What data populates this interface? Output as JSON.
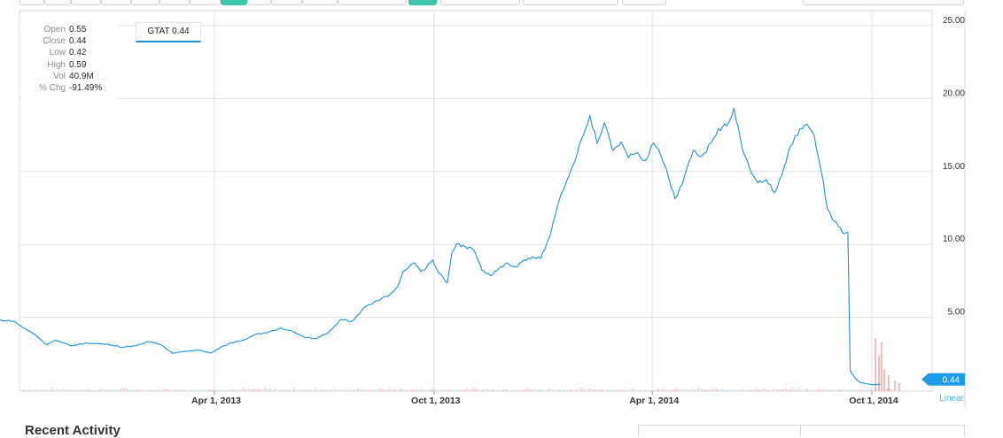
{
  "toolbar": {
    "buttons": 14,
    "active": [
      4,
      8
    ]
  },
  "ohlc": [
    {
      "label": "Open",
      "value": "0.55"
    },
    {
      "label": "Close",
      "value": "0.44"
    },
    {
      "label": "Low",
      "value": "0.42"
    },
    {
      "label": "High",
      "value": "0.59"
    },
    {
      "label": "Vol",
      "value": "40.9M"
    },
    {
      "label": "% Chg",
      "value": "-91.49%"
    }
  ],
  "legend": {
    "label": "GTAT 0.44"
  },
  "scale_mode": "Linear",
  "bottom": {
    "title": "Recent Activity"
  },
  "colors": {
    "line": "#1e90d6",
    "grid": "#e1e1e1",
    "volume": "#f4a6a6",
    "last_price": "#1e9be8",
    "accent": "#3fc5a9"
  },
  "chart_data": {
    "type": "line",
    "ticker": "GTAT",
    "last_price": "0.44",
    "x_ticks": [
      "Apr 1, 2013",
      "Oct 1, 2013",
      "Apr 1, 2014",
      "Oct 1, 2014"
    ],
    "y_ticks": [
      "5.00",
      "10.00",
      "15.00",
      "20.00",
      "25.00"
    ],
    "ylim": [
      0,
      25
    ],
    "xlim": [
      "2012-10-03",
      "2014-10-10"
    ],
    "grid": true,
    "series": [
      {
        "values": [
          [
            "2012-10-03",
            4.9
          ],
          [
            "2012-10-15",
            4.8
          ],
          [
            "2012-10-25",
            4.3
          ],
          [
            "2012-11-05",
            3.7
          ],
          [
            "2012-11-12",
            3.2
          ],
          [
            "2012-11-20",
            3.5
          ],
          [
            "2012-12-03",
            3.1
          ],
          [
            "2012-12-15",
            3.3
          ],
          [
            "2013-01-03",
            3.2
          ],
          [
            "2013-01-15",
            3.0
          ],
          [
            "2013-01-25",
            3.1
          ],
          [
            "2013-02-05",
            3.4
          ],
          [
            "2013-02-15",
            3.2
          ],
          [
            "2013-02-25",
            2.6
          ],
          [
            "2013-03-05",
            2.7
          ],
          [
            "2013-03-20",
            2.8
          ],
          [
            "2013-03-29",
            2.6
          ],
          [
            "2013-04-08",
            3.1
          ],
          [
            "2013-04-15",
            3.3
          ],
          [
            "2013-04-25",
            3.5
          ],
          [
            "2013-05-06",
            3.9
          ],
          [
            "2013-05-15",
            4.0
          ],
          [
            "2013-05-25",
            4.3
          ],
          [
            "2013-06-05",
            4.1
          ],
          [
            "2013-06-15",
            3.7
          ],
          [
            "2013-06-25",
            3.6
          ],
          [
            "2013-07-05",
            4.0
          ],
          [
            "2013-07-15",
            4.9
          ],
          [
            "2013-07-25",
            4.8
          ],
          [
            "2013-08-05",
            5.8
          ],
          [
            "2013-08-15",
            6.2
          ],
          [
            "2013-08-25",
            6.6
          ],
          [
            "2013-09-01",
            7.2
          ],
          [
            "2013-09-05",
            8.2
          ],
          [
            "2013-09-12",
            8.7
          ],
          [
            "2013-09-15",
            8.8
          ],
          [
            "2013-09-20",
            8.2
          ],
          [
            "2013-09-25",
            8.5
          ],
          [
            "2013-09-30",
            9.0
          ],
          [
            "2013-10-05",
            8.1
          ],
          [
            "2013-10-12",
            7.4
          ],
          [
            "2013-10-16",
            9.5
          ],
          [
            "2013-10-20",
            10.1
          ],
          [
            "2013-10-27",
            9.9
          ],
          [
            "2013-11-03",
            9.7
          ],
          [
            "2013-11-10",
            8.3
          ],
          [
            "2013-11-17",
            7.9
          ],
          [
            "2013-11-24",
            8.4
          ],
          [
            "2013-12-01",
            8.8
          ],
          [
            "2013-12-08",
            8.5
          ],
          [
            "2013-12-15",
            9.0
          ],
          [
            "2013-12-22",
            9.2
          ],
          [
            "2013-12-29",
            9.1
          ],
          [
            "2014-01-05",
            10.5
          ],
          [
            "2014-01-10",
            12.0
          ],
          [
            "2014-01-15",
            13.5
          ],
          [
            "2014-01-20",
            14.5
          ],
          [
            "2014-01-25",
            15.5
          ],
          [
            "2014-02-01",
            17.3
          ],
          [
            "2014-02-08",
            18.9
          ],
          [
            "2014-02-14",
            17.0
          ],
          [
            "2014-02-20",
            18.4
          ],
          [
            "2014-02-27",
            16.5
          ],
          [
            "2014-03-06",
            17.1
          ],
          [
            "2014-03-12",
            16.0
          ],
          [
            "2014-03-18",
            16.3
          ],
          [
            "2014-03-26",
            15.8
          ],
          [
            "2014-04-02",
            17.0
          ],
          [
            "2014-04-08",
            16.2
          ],
          [
            "2014-04-15",
            14.5
          ],
          [
            "2014-04-20",
            13.2
          ],
          [
            "2014-04-26",
            14.2
          ],
          [
            "2014-05-05",
            16.5
          ],
          [
            "2014-05-12",
            16.1
          ],
          [
            "2014-05-20",
            17.0
          ],
          [
            "2014-05-26",
            18.0
          ],
          [
            "2014-06-02",
            18.2
          ],
          [
            "2014-06-08",
            19.4
          ],
          [
            "2014-06-15",
            16.6
          ],
          [
            "2014-06-21",
            15.3
          ],
          [
            "2014-06-28",
            14.3
          ],
          [
            "2014-07-05",
            14.5
          ],
          [
            "2014-07-12",
            13.6
          ],
          [
            "2014-07-18",
            14.8
          ],
          [
            "2014-07-25",
            16.8
          ],
          [
            "2014-08-02",
            18.0
          ],
          [
            "2014-08-08",
            18.3
          ],
          [
            "2014-08-14",
            17.5
          ],
          [
            "2014-08-20",
            15.0
          ],
          [
            "2014-08-25",
            12.5
          ],
          [
            "2014-08-29",
            11.8
          ],
          [
            "2014-09-03",
            11.3
          ],
          [
            "2014-09-08",
            10.8
          ],
          [
            "2014-09-11",
            10.9
          ],
          [
            "2014-09-13",
            1.4
          ],
          [
            "2014-09-17",
            0.9
          ],
          [
            "2014-09-21",
            0.6
          ],
          [
            "2014-09-26",
            0.5
          ],
          [
            "2014-10-01",
            0.45
          ],
          [
            "2014-10-08",
            0.44
          ]
        ]
      }
    ]
  }
}
